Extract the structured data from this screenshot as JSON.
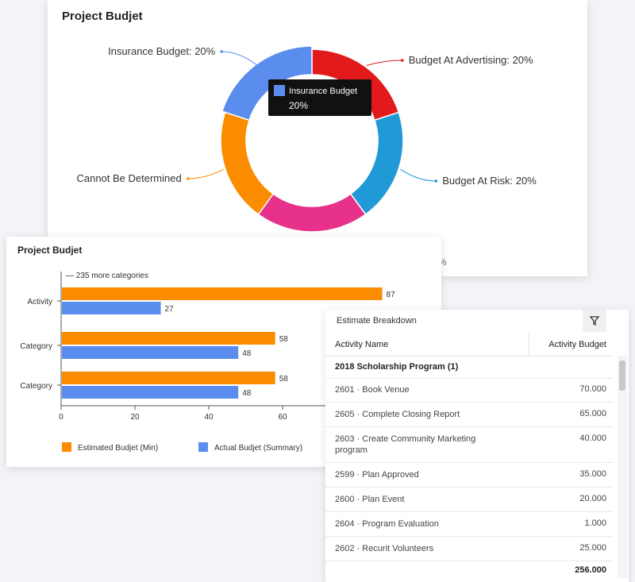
{
  "donut_card": {
    "title": "Project Budjet"
  },
  "bar_card": {
    "title": "Project Budjet"
  },
  "table_card": {
    "title": "Estimate Breakdown",
    "columns": [
      "Activity Name",
      "Activity Budget"
    ],
    "group": "2018 Scholarship Program (1)",
    "rows": [
      {
        "name": "2601 · Book Venue",
        "value": "70.000"
      },
      {
        "name": "2605 · Complete Closing Report",
        "value": "65.000"
      },
      {
        "name": "2603 · Create Community Marketing program",
        "value": "40.000"
      },
      {
        "name": "2599 · Plan Approved",
        "value": "35.000"
      },
      {
        "name": "2600 · Plan Event",
        "value": "20.000"
      },
      {
        "name": "2604 · Program Evaluation",
        "value": "1.000"
      },
      {
        "name": "2602 · Recurit Volunteers",
        "value": "25.000"
      }
    ],
    "total": "256.000",
    "filter_icon": "filter-icon"
  },
  "chart_data": [
    {
      "type": "pie",
      "title": "Project Budjet",
      "slices": [
        {
          "label": "Budget At Advertising: 20%",
          "value": 20,
          "color": "#e31a1c"
        },
        {
          "label": "Budget At Risk: 20%",
          "value": 20,
          "color": "#1f9ad6"
        },
        {
          "label": "",
          "value": 20,
          "color": "#e8318a"
        },
        {
          "label": "Cannot Be Determined",
          "value": 20,
          "color": "#fb8c00"
        },
        {
          "label": "Insurance Budget: 20%",
          "value": 20,
          "color": "#5b8def"
        }
      ],
      "tooltip": {
        "label": "Insurance Budget",
        "value": "20%"
      },
      "partial_label": "%"
    },
    {
      "type": "bar",
      "title": "Project Budjet",
      "orientation": "horizontal",
      "note": "235 more categories",
      "categories": [
        "Activity",
        "Category",
        "Category"
      ],
      "series": [
        {
          "name": "Estimated Budjet (Min)",
          "values": [
            87,
            58,
            58
          ],
          "color": "#fb8c00"
        },
        {
          "name": "Actual Budjet (Summary)",
          "values": [
            27,
            48,
            48
          ],
          "color": "#5b8def"
        }
      ],
      "xticks": [
        0,
        20,
        40,
        60
      ],
      "xlim": [
        0,
        100
      ]
    }
  ]
}
